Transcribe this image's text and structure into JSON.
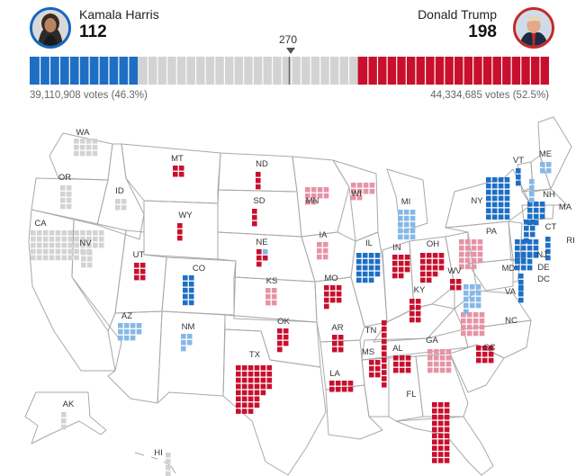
{
  "header": {
    "harris": {
      "name": "Kamala Harris",
      "electoral_votes": "112",
      "popular_votes": "39,110,908 votes (46.3%)",
      "portrait": "harris-portrait"
    },
    "trump": {
      "name": "Donald Trump",
      "electoral_votes": "198",
      "popular_votes": "44,334,685 votes (52.5%)",
      "portrait": "trump-portrait"
    },
    "threshold_label": "270"
  },
  "colors": {
    "dem": "#1e6fc4",
    "dem_lean": "#86b8e6",
    "rep": "#c8102e",
    "rep_lean": "#e693a6",
    "pending": "#d3d3d3",
    "outline": "#a9a9a9"
  },
  "electoral_bar": {
    "total": 538,
    "dem": 112,
    "rep": 198,
    "pending": 228
  },
  "states": [
    {
      "code": "WA",
      "status": "pending",
      "cols": [
        3,
        3,
        3,
        3
      ]
    },
    {
      "code": "OR",
      "status": "pending",
      "cols": [
        4,
        4
      ]
    },
    {
      "code": "CA",
      "status": "pending",
      "cols": [
        5,
        5,
        5,
        5,
        5,
        5,
        5,
        5,
        4,
        4,
        3,
        3
      ]
    },
    {
      "code": "ID",
      "status": "pending",
      "cols": [
        2,
        2
      ]
    },
    {
      "code": "NV",
      "status": "pending",
      "cols": [
        3,
        3
      ]
    },
    {
      "code": "MT",
      "status": "rep",
      "cols": [
        2,
        2
      ]
    },
    {
      "code": "WY",
      "status": "rep",
      "cols": [
        3
      ]
    },
    {
      "code": "UT",
      "status": "rep",
      "cols": [
        3,
        3
      ]
    },
    {
      "code": "CO",
      "status": "dem",
      "cols": [
        5,
        5
      ]
    },
    {
      "code": "AZ",
      "status": "dem_lean",
      "cols": [
        3,
        3,
        3,
        2
      ]
    },
    {
      "code": "NM",
      "status": "dem_lean",
      "cols": [
        3,
        2
      ]
    },
    {
      "code": "ND",
      "status": "rep",
      "cols": [
        3
      ]
    },
    {
      "code": "SD",
      "status": "rep",
      "cols": [
        3
      ]
    },
    {
      "code": "NE",
      "status": "mixed",
      "cols": [
        3,
        2
      ]
    },
    {
      "code": "KS",
      "status": "rep_lean",
      "cols": [
        3,
        3
      ]
    },
    {
      "code": "OK",
      "status": "rep",
      "cols": [
        4,
        3
      ]
    },
    {
      "code": "TX",
      "status": "rep",
      "cols": [
        8,
        8,
        8,
        7,
        5,
        4
      ]
    },
    {
      "code": "MN",
      "status": "rep_lean",
      "cols": [
        3,
        3,
        2,
        2
      ]
    },
    {
      "code": "IA",
      "status": "rep_lean",
      "cols": [
        3,
        3
      ]
    },
    {
      "code": "MO",
      "status": "rep",
      "cols": [
        4,
        3,
        3
      ]
    },
    {
      "code": "AR",
      "status": "rep",
      "cols": [
        3,
        3
      ]
    },
    {
      "code": "LA",
      "status": "rep",
      "cols": [
        2,
        2,
        2,
        2
      ]
    },
    {
      "code": "WI",
      "status": "rep_lean",
      "cols": [
        3,
        3,
        2,
        2
      ]
    },
    {
      "code": "IL",
      "status": "dem",
      "cols": [
        5,
        5,
        5,
        4
      ]
    },
    {
      "code": "MI",
      "status": "dem_lean",
      "cols": [
        5,
        5,
        5
      ]
    },
    {
      "code": "IN",
      "status": "rep",
      "cols": [
        4,
        4,
        3
      ]
    },
    {
      "code": "OH",
      "status": "rep",
      "cols": [
        5,
        5,
        4,
        3
      ]
    },
    {
      "code": "KY",
      "status": "rep",
      "cols": [
        4,
        4
      ]
    },
    {
      "code": "TN",
      "status": "rep",
      "cols": [
        11
      ]
    },
    {
      "code": "MS",
      "status": "rep",
      "cols": [
        3,
        3
      ]
    },
    {
      "code": "AL",
      "status": "rep",
      "cols": [
        3,
        3,
        3
      ]
    },
    {
      "code": "GA",
      "status": "rep_lean",
      "cols": [
        4,
        4,
        4,
        4
      ]
    },
    {
      "code": "FL",
      "status": "rep",
      "cols": [
        10,
        10,
        10
      ]
    },
    {
      "code": "SC",
      "status": "rep",
      "cols": [
        3,
        3,
        3
      ]
    },
    {
      "code": "NC",
      "status": "rep_lean",
      "cols": [
        4,
        4,
        4,
        4
      ]
    },
    {
      "code": "VA",
      "status": "dem_lean",
      "cols": [
        5,
        4,
        4
      ]
    },
    {
      "code": "WV",
      "status": "rep",
      "cols": [
        2,
        2
      ]
    },
    {
      "code": "PA",
      "status": "rep_lean",
      "cols": [
        5,
        5,
        5,
        4
      ]
    },
    {
      "code": "NY",
      "status": "dem",
      "cols": [
        7,
        7,
        7,
        7
      ]
    },
    {
      "code": "NJ",
      "status": "dem",
      "cols": [
        4,
        4,
        3,
        3
      ]
    },
    {
      "code": "DE",
      "status": "dem",
      "cols": [
        3
      ]
    },
    {
      "code": "MD",
      "status": "dem",
      "cols": [
        3,
        3,
        3,
        1
      ]
    },
    {
      "code": "DC",
      "status": "dem",
      "cols": [
        3
      ]
    },
    {
      "code": "CT",
      "status": "dem",
      "cols": [
        4,
        3
      ]
    },
    {
      "code": "RI",
      "status": "dem",
      "cols": [
        4
      ]
    },
    {
      "code": "MA",
      "status": "dem",
      "cols": [
        4,
        4,
        3
      ]
    },
    {
      "code": "VT",
      "status": "dem",
      "cols": [
        3
      ]
    },
    {
      "code": "NH",
      "status": "dem_lean",
      "cols": [
        4
      ]
    },
    {
      "code": "ME",
      "status": "dem_lean",
      "cols": [
        2,
        2
      ]
    },
    {
      "code": "AK",
      "status": "pending",
      "cols": [
        3
      ]
    },
    {
      "code": "HI",
      "status": "pending",
      "cols": [
        4
      ]
    }
  ]
}
